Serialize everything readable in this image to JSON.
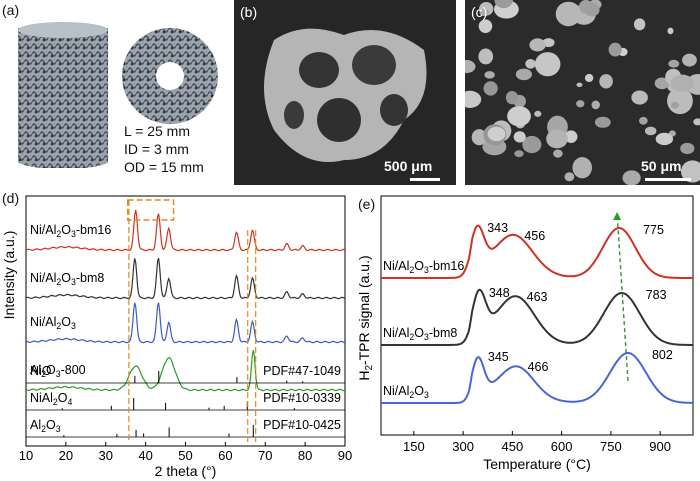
{
  "panels": {
    "a": {
      "label": "(a)",
      "specs": [
        "L = 25 mm",
        "ID = 3 mm",
        "OD = 15 mm"
      ]
    },
    "b": {
      "label": "(b)",
      "scale": "500 μm"
    },
    "c": {
      "label": "(c)",
      "scale": "50 μm"
    },
    "d": {
      "label": "(d)"
    },
    "e": {
      "label": "(e)"
    }
  },
  "chart_data": [
    {
      "type": "line",
      "panel": "d",
      "xlabel": "2 theta (°)",
      "ylabel": "Intensity (a.u.)",
      "xlim": [
        10,
        90
      ],
      "xticks": [
        10,
        20,
        30,
        40,
        50,
        60,
        70,
        80,
        90
      ],
      "series": [
        {
          "name": "Ni/Al2O3-bm16",
          "display": [
            "Ni/Al",
            "2",
            "O",
            "3",
            "-bm16"
          ],
          "color": "#cc3322",
          "peaks": [
            [
              37.5,
              1.0
            ],
            [
              43.2,
              0.9
            ],
            [
              45.8,
              0.55
            ],
            [
              62.8,
              0.45
            ],
            [
              66.8,
              0.5
            ],
            [
              75.4,
              0.15
            ],
            [
              79.4,
              0.1
            ]
          ]
        },
        {
          "name": "Ni/Al2O3-bm8",
          "display": [
            "Ni/Al",
            "2",
            "O",
            "3",
            "-bm8"
          ],
          "color": "#333333",
          "peaks": [
            [
              37.3,
              1.0
            ],
            [
              43.2,
              1.0
            ],
            [
              45.8,
              0.5
            ],
            [
              62.8,
              0.55
            ],
            [
              66.8,
              0.5
            ],
            [
              75.4,
              0.15
            ],
            [
              79.4,
              0.1
            ]
          ]
        },
        {
          "name": "Ni/Al2O3",
          "display": [
            "Ni/Al",
            "2",
            "O",
            "3",
            ""
          ],
          "color": "#3b5bc4",
          "peaks": [
            [
              37.3,
              1.0
            ],
            [
              43.2,
              1.0
            ],
            [
              45.8,
              0.5
            ],
            [
              62.8,
              0.55
            ],
            [
              66.8,
              0.5
            ],
            [
              75.4,
              0.15
            ],
            [
              79.4,
              0.1
            ]
          ]
        },
        {
          "name": "Al2O3-800",
          "display": [
            "Al",
            "2",
            "O",
            "3",
            "-800"
          ],
          "color": "#2d9a2d",
          "peaks": [
            [
              37.5,
              0.6
            ],
            [
              45.8,
              0.8
            ],
            [
              67.0,
              1.0
            ]
          ]
        }
      ],
      "references": [
        {
          "name": "NiO",
          "display": [
            "NiO",
            "",
            "",
            "",
            ""
          ],
          "pdf": "PDF#47-1049",
          "lines": [
            [
              37.3,
              0.6
            ],
            [
              43.3,
              1.0
            ],
            [
              62.9,
              0.5
            ],
            [
              75.4,
              0.2
            ],
            [
              79.4,
              0.15
            ]
          ]
        },
        {
          "name": "NiAl2O4",
          "display": [
            "NiAl",
            "2",
            "O",
            "4",
            ""
          ],
          "pdf": "PDF#10-0339",
          "lines": [
            [
              19.1,
              0.15
            ],
            [
              31.4,
              0.35
            ],
            [
              37.0,
              1.0
            ],
            [
              45.0,
              0.6
            ],
            [
              55.9,
              0.2
            ],
            [
              59.7,
              0.35
            ],
            [
              65.5,
              0.7
            ],
            [
              77.3,
              0.15
            ]
          ]
        },
        {
          "name": "Al2O3",
          "display": [
            "Al",
            "2",
            "O",
            "3",
            ""
          ],
          "pdf": "PDF#10-0425",
          "lines": [
            [
              19.5,
              0.15
            ],
            [
              32.8,
              0.25
            ],
            [
              37.6,
              0.6
            ],
            [
              39.5,
              0.3
            ],
            [
              45.9,
              0.8
            ],
            [
              60.9,
              0.3
            ],
            [
              67.0,
              1.0
            ]
          ]
        }
      ]
    },
    {
      "type": "line",
      "panel": "e",
      "xlabel": "Temperature (°C)",
      "ylabel": "H2-TPR signal (a.u.)",
      "ylabel_display": [
        "H",
        "2",
        "-TPR signal (a.u.)"
      ],
      "xlim": [
        50,
        1000
      ],
      "xticks": [
        150,
        300,
        450,
        600,
        750,
        900
      ],
      "series": [
        {
          "name": "Ni/Al2O3-bm16",
          "display": [
            "Ni/Al",
            "2",
            "O",
            "3",
            "-bm16"
          ],
          "color": "#cc3322",
          "peaks": [
            [
              343,
              1.0,
              20
            ],
            [
              456,
              0.9,
              55
            ],
            [
              775,
              1.0,
              50
            ]
          ]
        },
        {
          "name": "Ni/Al2O3-bm8",
          "display": [
            "Ni/Al",
            "2",
            "O",
            "3",
            "-bm8"
          ],
          "color": "#333333",
          "peaks": [
            [
              348,
              1.0,
              20
            ],
            [
              463,
              0.95,
              55
            ],
            [
              783,
              1.0,
              55
            ]
          ]
        },
        {
          "name": "Ni/Al2O3",
          "display": [
            "Ni/Al",
            "2",
            "O",
            "3",
            ""
          ],
          "color": "#4a66d6",
          "peaks": [
            [
              345,
              1.0,
              18
            ],
            [
              466,
              0.85,
              50
            ],
            [
              802,
              1.0,
              55
            ]
          ]
        }
      ],
      "peak_labels": [
        {
          "series": 0,
          "values": [
            "343",
            "456",
            "775"
          ]
        },
        {
          "series": 1,
          "values": [
            "348",
            "463",
            "783"
          ]
        },
        {
          "series": 2,
          "values": [
            "345",
            "466",
            "802"
          ]
        }
      ]
    }
  ]
}
